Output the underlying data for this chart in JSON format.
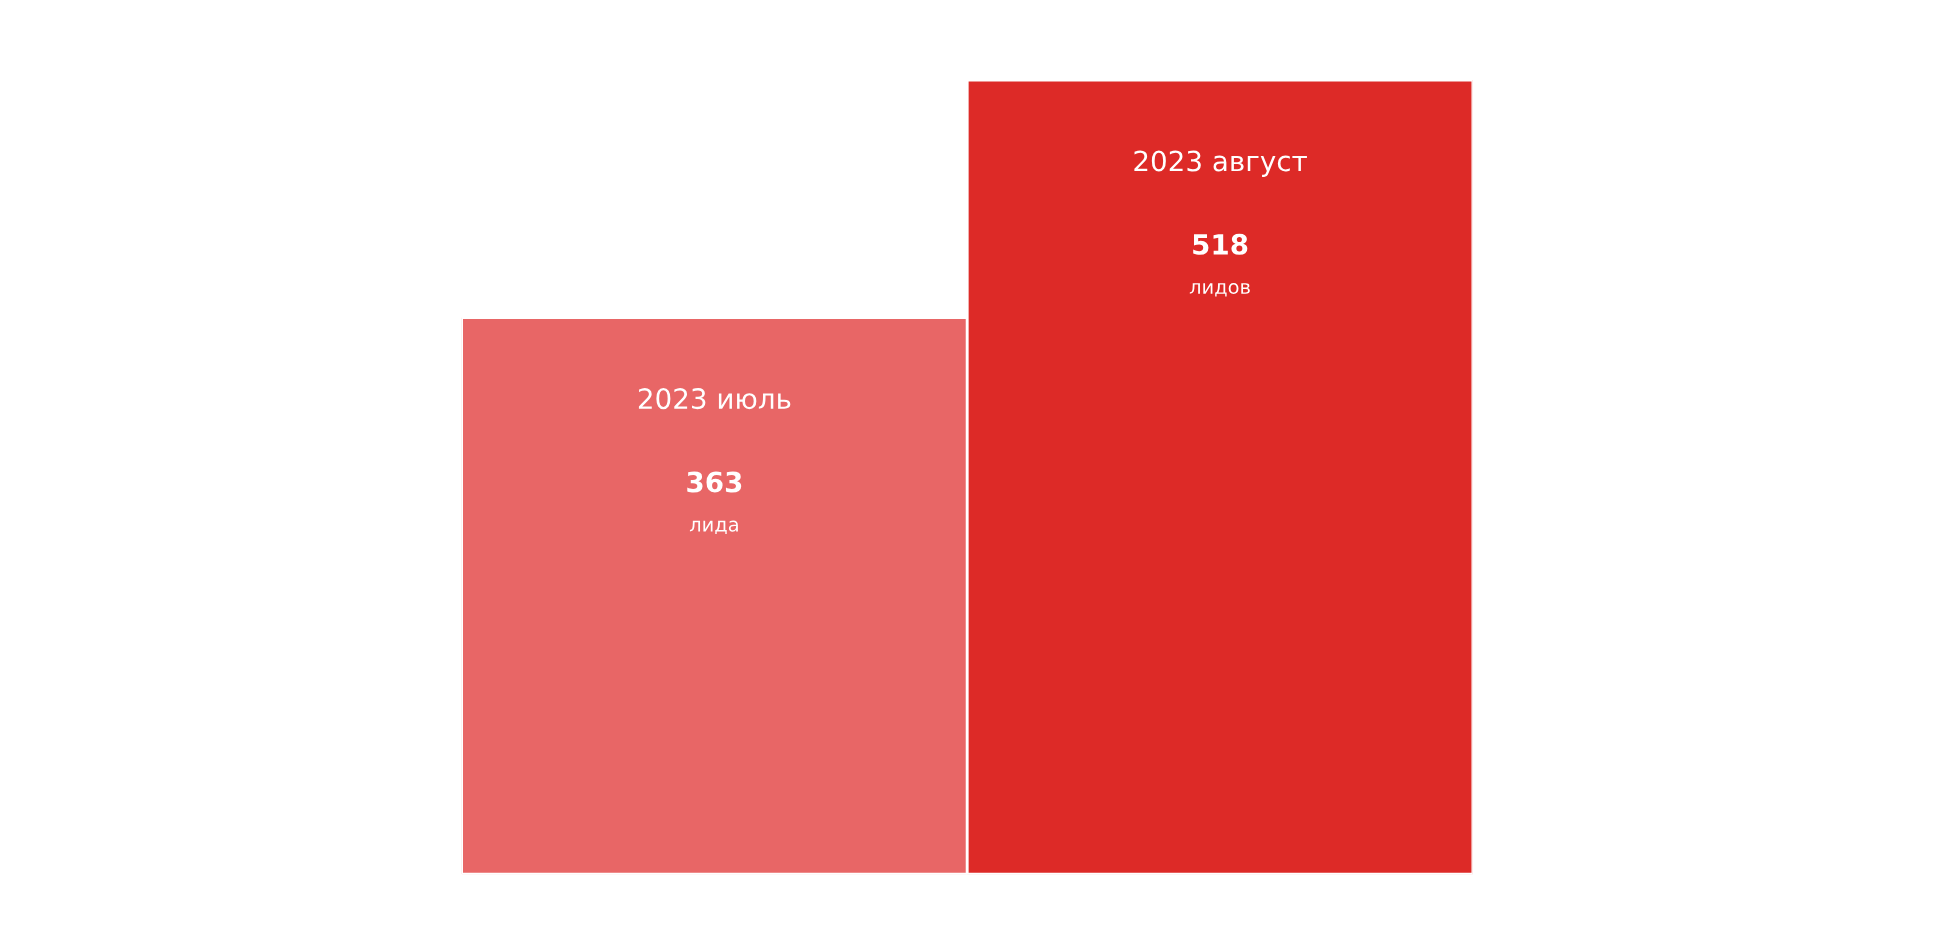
{
  "chart_data": {
    "type": "bar",
    "categories": [
      "2023 июль",
      "2023 август"
    ],
    "values": [
      363,
      518
    ],
    "colors": [
      "#e86666",
      "#dd2a27"
    ],
    "data_labels": true,
    "annotations": [
      "лида",
      "лидов"
    ]
  }
}
